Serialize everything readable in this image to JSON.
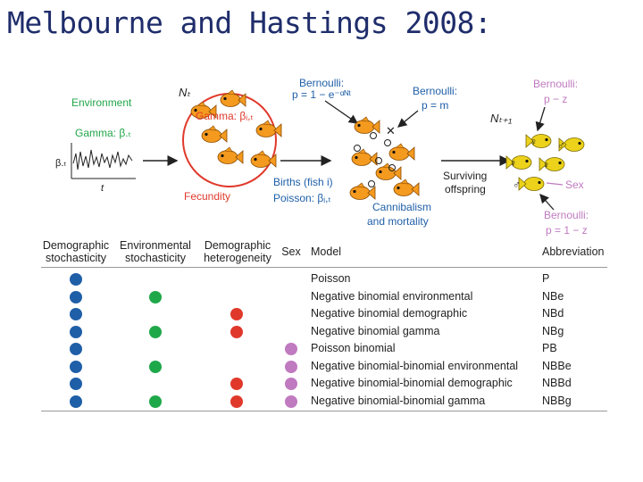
{
  "slide": {
    "title": "Melbourne and Hastings 2008:"
  },
  "diagram": {
    "environment_label": "Environment",
    "gamma_label": "Gamma: β.ₜ",
    "beta_axis": "β.ₜ",
    "t_axis": "t",
    "n_t": "Nₜ",
    "gamma_fish": "Gamma: βᵢ,ₜ",
    "fecundity": "Fecundity",
    "bernoulli1": "Bernoulli:",
    "bernoulli1_formula": "p = 1 − e⁻ᵅᴺᵗ",
    "bernoulli2": "Bernoulli:",
    "bernoulli2_formula": "p = m",
    "births_line1": "Births (fish i)",
    "births_line2": "Poisson: βᵢ,ₜ",
    "cannibalism_line1": "Cannibalism",
    "cannibalism_line2": "and mortality",
    "n_t1": "Nₜ₊₁",
    "surviving_line1": "Surviving",
    "surviving_line2": "offspring",
    "bernoulli3": "Bernoulli:",
    "bernoulli3_formula": "p − z",
    "sex": "Sex",
    "bernoulli4": "Bernoulli:",
    "bernoulli4_formula": "p = 1 − z",
    "female_symbol": "♀",
    "male_symbol": "♂",
    "x_mark": "✕"
  },
  "table": {
    "headers": {
      "demographic_stochasticity": "Demographic stochasticity",
      "environmental_stochasticity": "Environmental stochasticity",
      "demographic_heterogeneity": "Demographic heterogeneity",
      "sex": "Sex",
      "model": "Model",
      "abbreviation": "Abbreviation"
    },
    "colors": {
      "demographic": "#1f5fa8",
      "environmental": "#1fa84a",
      "heterogeneity": "#e0392b",
      "sex": "#c07ac0"
    },
    "rows": [
      {
        "model": "Poisson",
        "abbr": "P",
        "ds": true,
        "es": false,
        "dh": false,
        "sex": false
      },
      {
        "model": "Negative binomial environmental",
        "abbr": "NBe",
        "ds": true,
        "es": true,
        "dh": false,
        "sex": false
      },
      {
        "model": "Negative binomial demographic",
        "abbr": "NBd",
        "ds": true,
        "es": false,
        "dh": true,
        "sex": false
      },
      {
        "model": "Negative binomial gamma",
        "abbr": "NBg",
        "ds": true,
        "es": true,
        "dh": true,
        "sex": false
      },
      {
        "model": "Poisson binomial",
        "abbr": "PB",
        "ds": true,
        "es": false,
        "dh": false,
        "sex": true
      },
      {
        "model": "Negative binomial-binomial environmental",
        "abbr": "NBBe",
        "ds": true,
        "es": true,
        "dh": false,
        "sex": true
      },
      {
        "model": "Negative binomial-binomial demographic",
        "abbr": "NBBd",
        "ds": true,
        "es": false,
        "dh": true,
        "sex": true
      },
      {
        "model": "Negative binomial-binomial gamma",
        "abbr": "NBBg",
        "ds": true,
        "es": true,
        "dh": true,
        "sex": true
      }
    ]
  }
}
